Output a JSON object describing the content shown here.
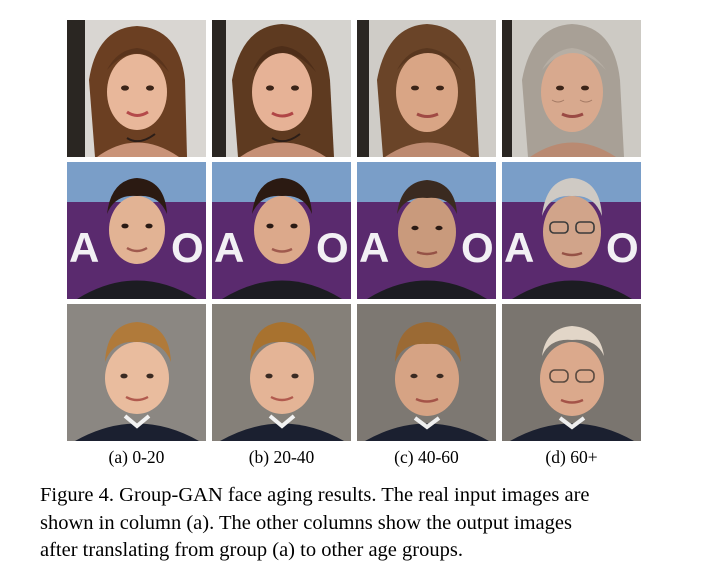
{
  "figure": {
    "column_labels": [
      "(a) 0-20",
      "(b) 20-40",
      "(c) 40-60",
      "(d) 60+"
    ],
    "caption_lines": [
      "Figure 4. Group-GAN face aging results. The real input images are",
      "shown in column (a). The other columns show the output images",
      "after translating from group (a) to other age groups."
    ],
    "rows": [
      {
        "subject": "girl-long-brown-hair",
        "columns": [
          "young",
          "young-adult",
          "middle-aged",
          "elderly-gray-hair"
        ]
      },
      {
        "subject": "young-man-dark-hair",
        "columns": [
          "young",
          "young-adult",
          "middle-aged",
          "elderly-glasses-gray-hair"
        ]
      },
      {
        "subject": "boy-blond-hair",
        "columns": [
          "young",
          "young-adult",
          "middle-aged",
          "elderly-balding-glasses"
        ]
      }
    ]
  }
}
